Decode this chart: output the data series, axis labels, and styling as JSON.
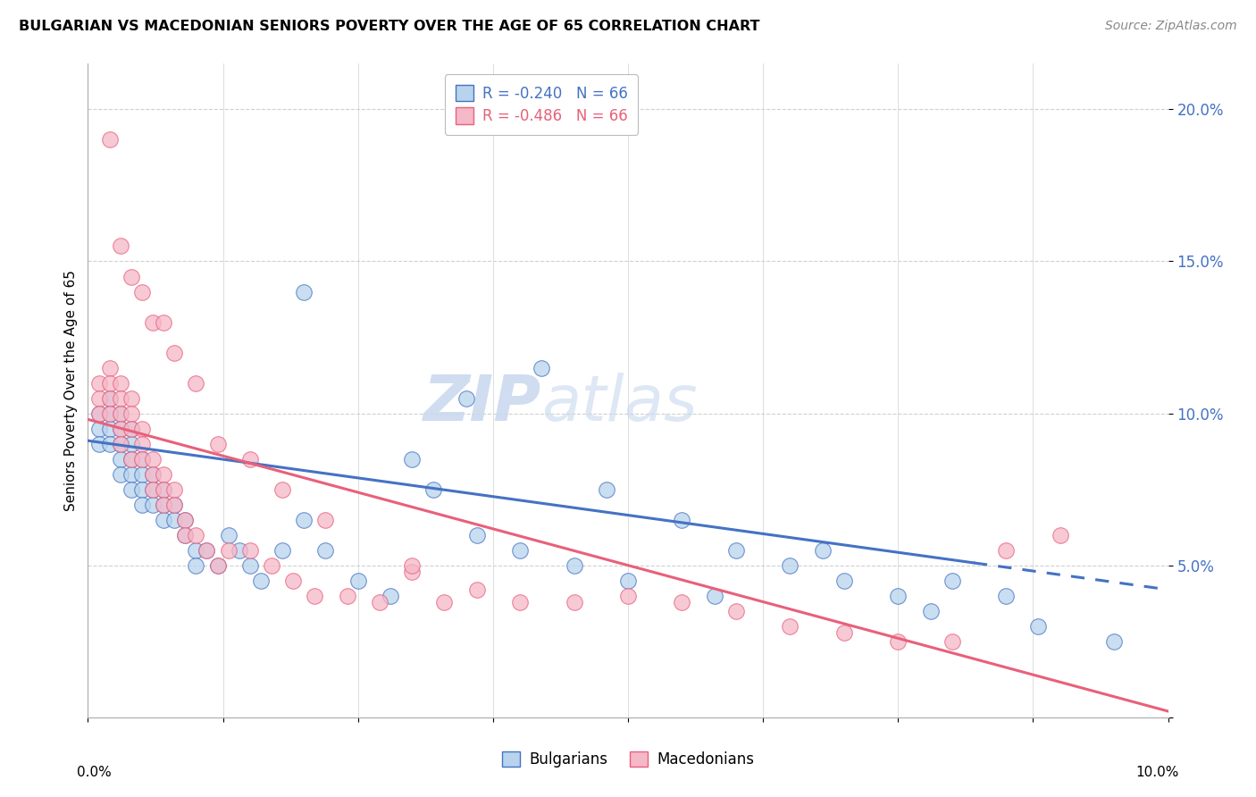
{
  "title": "BULGARIAN VS MACEDONIAN SENIORS POVERTY OVER THE AGE OF 65 CORRELATION CHART",
  "source": "Source: ZipAtlas.com",
  "ylabel": "Seniors Poverty Over the Age of 65",
  "watermark_zip": "ZIP",
  "watermark_atlas": "atlas",
  "legend_bulgarian": "R = -0.240   N = 66",
  "legend_macedonian": "R = -0.486   N = 66",
  "bulgarian_color": "#b8d4ec",
  "macedonian_color": "#f5b8c8",
  "trend_bulgarian_color": "#4472c4",
  "trend_macedonian_color": "#e8607a",
  "R_bulgarian": -0.24,
  "R_macedonian": -0.486,
  "xlim": [
    0.0,
    0.1
  ],
  "ylim": [
    0.0,
    0.215
  ],
  "yticks": [
    0.0,
    0.05,
    0.1,
    0.15,
    0.2
  ],
  "ytick_labels": [
    "",
    "5.0%",
    "10.0%",
    "15.0%",
    "20.0%"
  ],
  "bul_trend_x0": 0.0,
  "bul_trend_y0": 0.091,
  "bul_trend_x1": 0.1,
  "bul_trend_y1": 0.042,
  "bul_trend_solid_end": 0.082,
  "mac_trend_x0": 0.0,
  "mac_trend_y0": 0.098,
  "mac_trend_x1": 0.1,
  "mac_trend_y1": 0.002,
  "bulgarian_x": [
    0.001,
    0.001,
    0.001,
    0.002,
    0.002,
    0.002,
    0.002,
    0.003,
    0.003,
    0.003,
    0.003,
    0.003,
    0.004,
    0.004,
    0.004,
    0.004,
    0.004,
    0.005,
    0.005,
    0.005,
    0.005,
    0.006,
    0.006,
    0.006,
    0.007,
    0.007,
    0.007,
    0.008,
    0.008,
    0.009,
    0.009,
    0.01,
    0.01,
    0.011,
    0.012,
    0.013,
    0.014,
    0.015,
    0.016,
    0.018,
    0.02,
    0.022,
    0.025,
    0.028,
    0.032,
    0.036,
    0.04,
    0.045,
    0.05,
    0.055,
    0.06,
    0.065,
    0.07,
    0.075,
    0.08,
    0.085,
    0.02,
    0.03,
    0.035,
    0.042,
    0.048,
    0.058,
    0.068,
    0.078,
    0.088,
    0.095
  ],
  "bulgarian_y": [
    0.1,
    0.095,
    0.09,
    0.105,
    0.1,
    0.095,
    0.09,
    0.1,
    0.095,
    0.09,
    0.085,
    0.08,
    0.095,
    0.09,
    0.085,
    0.08,
    0.075,
    0.085,
    0.08,
    0.075,
    0.07,
    0.08,
    0.075,
    0.07,
    0.075,
    0.07,
    0.065,
    0.07,
    0.065,
    0.065,
    0.06,
    0.055,
    0.05,
    0.055,
    0.05,
    0.06,
    0.055,
    0.05,
    0.045,
    0.055,
    0.065,
    0.055,
    0.045,
    0.04,
    0.075,
    0.06,
    0.055,
    0.05,
    0.045,
    0.065,
    0.055,
    0.05,
    0.045,
    0.04,
    0.045,
    0.04,
    0.14,
    0.085,
    0.105,
    0.115,
    0.075,
    0.04,
    0.055,
    0.035,
    0.03,
    0.025
  ],
  "macedonian_x": [
    0.001,
    0.001,
    0.001,
    0.002,
    0.002,
    0.002,
    0.002,
    0.003,
    0.003,
    0.003,
    0.003,
    0.003,
    0.004,
    0.004,
    0.004,
    0.004,
    0.005,
    0.005,
    0.005,
    0.006,
    0.006,
    0.006,
    0.007,
    0.007,
    0.007,
    0.008,
    0.008,
    0.009,
    0.009,
    0.01,
    0.011,
    0.012,
    0.013,
    0.015,
    0.017,
    0.019,
    0.021,
    0.024,
    0.027,
    0.03,
    0.033,
    0.036,
    0.04,
    0.045,
    0.05,
    0.055,
    0.06,
    0.065,
    0.07,
    0.075,
    0.08,
    0.085,
    0.002,
    0.003,
    0.004,
    0.005,
    0.006,
    0.007,
    0.008,
    0.01,
    0.012,
    0.015,
    0.018,
    0.022,
    0.03,
    0.09
  ],
  "macedonian_y": [
    0.11,
    0.105,
    0.1,
    0.115,
    0.11,
    0.105,
    0.1,
    0.11,
    0.105,
    0.1,
    0.095,
    0.09,
    0.105,
    0.1,
    0.095,
    0.085,
    0.095,
    0.09,
    0.085,
    0.085,
    0.08,
    0.075,
    0.08,
    0.075,
    0.07,
    0.075,
    0.07,
    0.065,
    0.06,
    0.06,
    0.055,
    0.05,
    0.055,
    0.055,
    0.05,
    0.045,
    0.04,
    0.04,
    0.038,
    0.048,
    0.038,
    0.042,
    0.038,
    0.038,
    0.04,
    0.038,
    0.035,
    0.03,
    0.028,
    0.025,
    0.025,
    0.055,
    0.19,
    0.155,
    0.145,
    0.14,
    0.13,
    0.13,
    0.12,
    0.11,
    0.09,
    0.085,
    0.075,
    0.065,
    0.05,
    0.06
  ]
}
